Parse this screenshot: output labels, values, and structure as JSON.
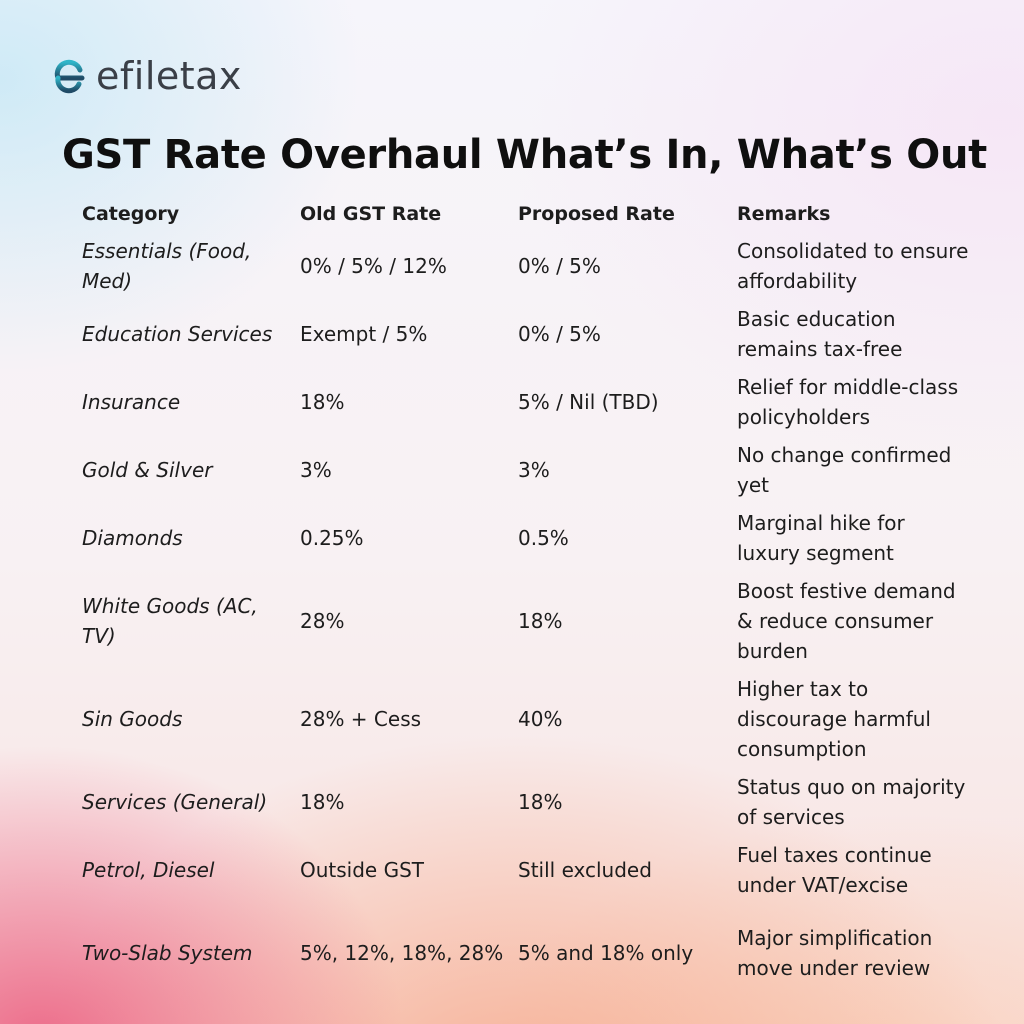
{
  "brand": {
    "name": "efiletax",
    "colors": {
      "logo_gradient_top": "#2fb6c9",
      "logo_gradient_bottom": "#1f4a66",
      "text": "#3a3f47"
    }
  },
  "title": "GST Rate Overhaul What’s In, What’s Out",
  "table": {
    "headers": [
      "Category",
      "Old GST Rate",
      "Proposed Rate",
      "Remarks"
    ],
    "rows": [
      {
        "category": "Essentials (Food, Med)",
        "old": "0% / 5% / 12%",
        "proposed": "0% / 5%",
        "remarks": "Consolidated to ensure affordability"
      },
      {
        "category": "Education Services",
        "old": "Exempt / 5%",
        "proposed": "0% / 5%",
        "remarks": "Basic education remains tax-free"
      },
      {
        "category": "Insurance",
        "old": "18%",
        "proposed": "5% / Nil (TBD)",
        "remarks": "Relief for middle-class policyholders"
      },
      {
        "category": "Gold & Silver",
        "old": "3%",
        "proposed": "3%",
        "remarks": "No change confirmed yet"
      },
      {
        "category": "Diamonds",
        "old": "0.25%",
        "proposed": "0.5%",
        "remarks": "Marginal hike for luxury segment"
      },
      {
        "category": "White Goods (AC, TV)",
        "old": "28%",
        "proposed": "18%",
        "remarks": "Boost festive demand & reduce consumer burden"
      },
      {
        "category": "Sin Goods",
        "old": "28% + Cess",
        "proposed": "40%",
        "remarks": "Higher tax to discourage harmful consumption"
      },
      {
        "category": "Services (General)",
        "old": "18%",
        "proposed": "18%",
        "remarks": "Status quo on majority of services"
      },
      {
        "category": "Petrol, Diesel",
        "old": "Outside GST",
        "proposed": "Still excluded",
        "remarks": "Fuel taxes continue under VAT/excise"
      },
      {
        "category": "Two-Slab System",
        "old": "5%, 12%, 18%, 28%",
        "proposed": "5% and 18% only",
        "remarks": "Major simplification move under review"
      }
    ]
  }
}
